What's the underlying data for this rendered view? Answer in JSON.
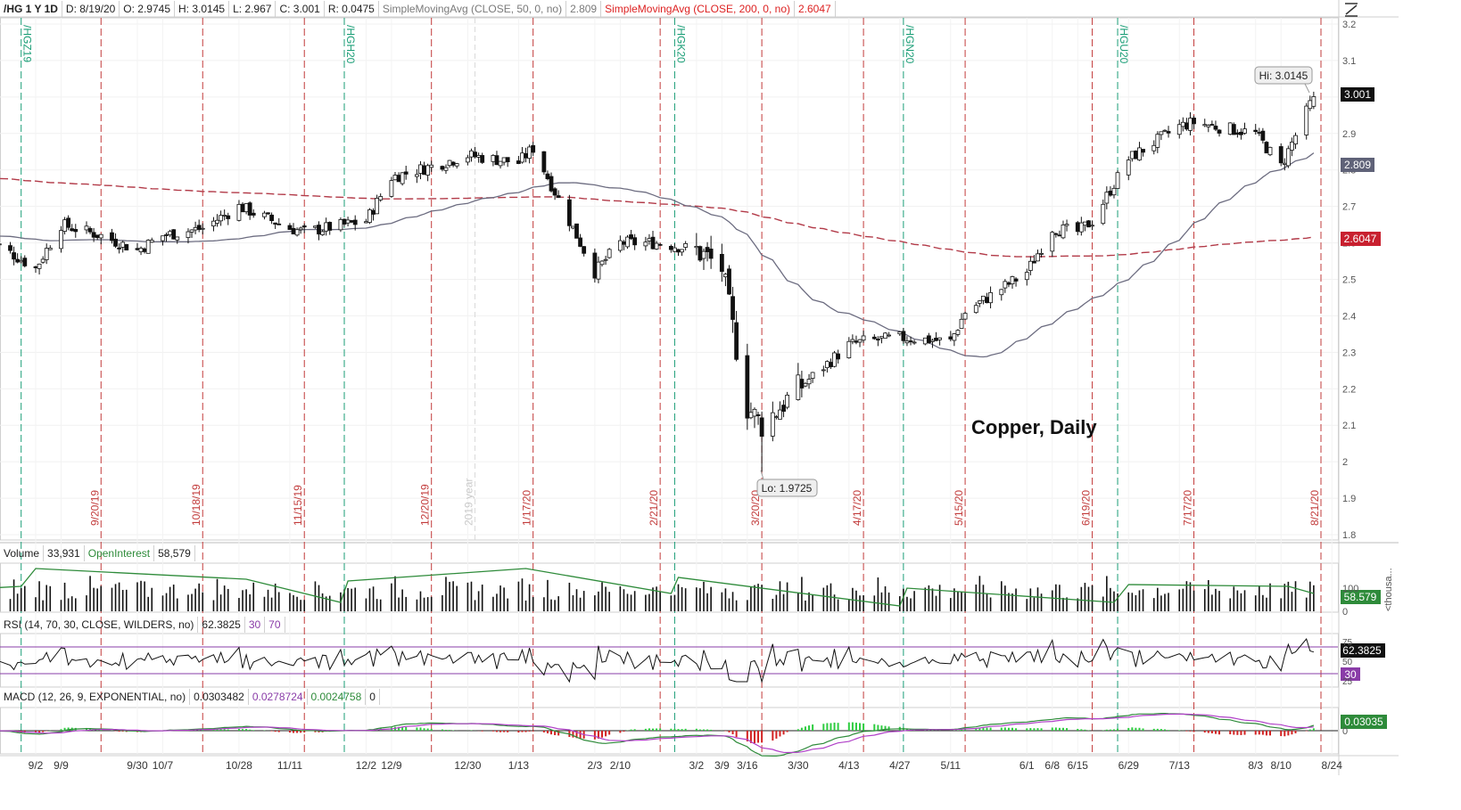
{
  "header": {
    "symbol": "/HG 1 Y 1D",
    "date": "D: 8/19/20",
    "open": "O: 2.9745",
    "high": "H: 3.0145",
    "low": "L: 2.967",
    "close": "C: 3.001",
    "range": "R: 0.0475",
    "sma50_label": "SimpleMovingAvg (CLOSE, 50, 0, no)",
    "sma50_value": "2.809",
    "sma200_label": "SimpleMovingAvg (CLOSE, 200, 0, no)",
    "sma200_value": "2.6047"
  },
  "price_axis": {
    "ticks": [
      "3.2",
      "3.1",
      "3",
      "2.9",
      "2.8",
      "2.7",
      "2.6",
      "2.5",
      "2.4",
      "2.3",
      "2.2",
      "2.1",
      "2",
      "1.9",
      "1.8"
    ],
    "last_price_badge": "3.001",
    "sma50_badge": "2.809",
    "sma200_badge": "2.6047"
  },
  "date_axis": {
    "labels": [
      "9/2",
      "9/9",
      "9/30",
      "10/7",
      "10/28",
      "11/11",
      "12/2",
      "12/9",
      "12/30",
      "1/13",
      "2/3",
      "2/10",
      "3/2",
      "3/9",
      "3/16",
      "3/30",
      "4/13",
      "4/27",
      "5/11",
      "6/1",
      "6/8",
      "6/15",
      "6/29",
      "7/13",
      "8/3",
      "8/10",
      "8/24"
    ]
  },
  "annotations": {
    "chart_title": "Copper, Daily",
    "high_callout": "Hi: 3.0145",
    "low_callout": "Lo: 1.9725",
    "expiry_labels": [
      "9/20/19",
      "10/18/19",
      "11/15/19",
      "12/20/19",
      "1/17/20",
      "2/21/20",
      "3/20/20",
      "4/17/20",
      "5/15/20",
      "6/19/20",
      "7/17/20",
      "8/21/20"
    ],
    "contract_labels": [
      "/HGZ19",
      "/HGH20",
      "/HGK20",
      "/HGN20",
      "/HGU20"
    ],
    "year_label": "2019 year"
  },
  "volume_panel": {
    "label": "Volume",
    "volume": "33,931",
    "oi_label": "OpenInterest",
    "oi_value": "58,579",
    "axis_tick": "100",
    "axis_zero": "0",
    "badge": "58.579",
    "unit_label": "<thousa..."
  },
  "rsi_panel": {
    "label": "RSI (14, 70, 30, CLOSE, WILDERS, no)",
    "value": "62.3825",
    "lower": "30",
    "upper": "70",
    "axis_75": "75",
    "axis_50": "50",
    "axis_25": "25",
    "badge": "62.3825",
    "badge30": "30"
  },
  "macd_panel": {
    "label": "MACD (12, 26, 9, EXPONENTIAL, no)",
    "value": "0.0303482",
    "avg": "0.0278724",
    "diff": "0.0024758",
    "zero": "0",
    "axis_zero": "0",
    "badge": "0.03035"
  },
  "colors": {
    "up": "#ffffff",
    "down": "#111111",
    "sma50": "#6c6c80",
    "sma200": "#b23a48",
    "expiry_line": "#c23b3b",
    "contract_line": "#1b9e77",
    "volume_bar": "#111111",
    "oi_line": "#2e8b3a",
    "rsi_line": "#111111",
    "rsi_over": "#b23a48",
    "rsi_band": "#8a3ca8",
    "macd_value": "#2e8b3a",
    "macd_avg": "#b040c8",
    "hist_pos": "#2ecc40",
    "hist_neg": "#d22222"
  },
  "chart_data": {
    "type": "candlestick",
    "title": "Copper, Daily",
    "ylim": [
      1.8,
      3.2
    ],
    "x_range": [
      "8/20/19",
      "8/21/20"
    ],
    "anchors": {
      "dates": [
        "2019-08-20",
        "2019-09-02",
        "2019-09-09",
        "2019-09-20",
        "2019-09-30",
        "2019-10-07",
        "2019-10-18",
        "2019-10-28",
        "2019-11-11",
        "2019-11-15",
        "2019-12-02",
        "2019-12-09",
        "2019-12-20",
        "2019-12-30",
        "2020-01-13",
        "2020-01-17",
        "2020-02-03",
        "2020-02-10",
        "2020-02-21",
        "2020-03-02",
        "2020-03-09",
        "2020-03-16",
        "2020-03-20",
        "2020-03-30",
        "2020-04-13",
        "2020-04-17",
        "2020-04-27",
        "2020-05-11",
        "2020-05-15",
        "2020-06-01",
        "2020-06-08",
        "2020-06-15",
        "2020-06-19",
        "2020-06-29",
        "2020-07-13",
        "2020-07-17",
        "2020-08-03",
        "2020-08-10",
        "2020-08-19"
      ],
      "close": [
        2.61,
        2.53,
        2.65,
        2.62,
        2.58,
        2.62,
        2.64,
        2.7,
        2.64,
        2.63,
        2.66,
        2.78,
        2.81,
        2.84,
        2.82,
        2.86,
        2.52,
        2.6,
        2.6,
        2.58,
        2.53,
        2.15,
        2.1,
        2.2,
        2.32,
        2.33,
        2.34,
        2.33,
        2.41,
        2.52,
        2.64,
        2.63,
        2.66,
        2.83,
        2.92,
        2.93,
        2.9,
        2.81,
        3.001
      ]
    },
    "high": 3.0145,
    "low": 1.9725,
    "series": [
      {
        "name": "SimpleMovingAvg (CLOSE, 50, 0, no)",
        "last": 2.809
      },
      {
        "name": "SimpleMovingAvg (CLOSE, 200, 0, no)",
        "last": 2.6047
      }
    ],
    "volume_last": 33931,
    "open_interest_last": 58579,
    "rsi_last": 62.3825,
    "macd": {
      "value": 0.0303482,
      "avg": 0.0278724,
      "diff": 0.0024758
    }
  }
}
